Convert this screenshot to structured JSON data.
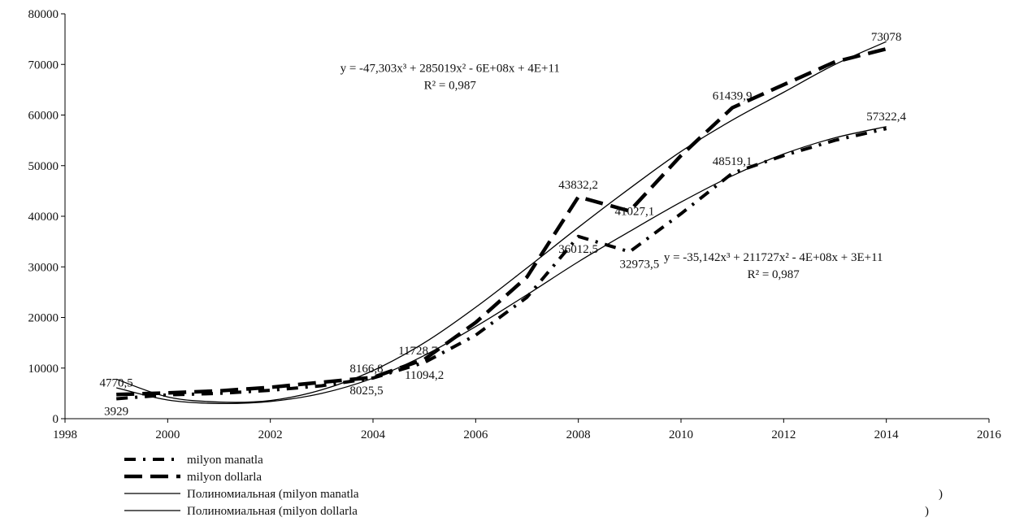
{
  "chart_data": {
    "type": "line",
    "x": [
      1999,
      2000,
      2001,
      2002,
      2003,
      2004,
      2005,
      2006,
      2007,
      2008,
      2009,
      2010,
      2011,
      2012,
      2013,
      2014
    ],
    "series": [
      {
        "name": "milyon manatla",
        "style": "dash-dot",
        "values": [
          3929,
          4700,
          5000,
          5600,
          6500,
          8025.5,
          11094.2,
          16500,
          24000,
          36012.5,
          32973.5,
          40500,
          48519.1,
          52000,
          55000,
          57322.4
        ]
      },
      {
        "name": "milyon dollarla",
        "style": "dash",
        "values": [
          4770.5,
          5100,
          5500,
          6200,
          7200,
          8166.8,
          11728.7,
          19000,
          28000,
          43832.2,
          41027.1,
          52000,
          61439.9,
          66000,
          70500,
          73078
        ]
      },
      {
        "name": "Полиномиальная (milyon manatla",
        "style": "solid",
        "trend_of": "milyon manatla",
        "equation": "y = -35,142x³ + 211727x² - 4E+08x + 3E+11",
        "r2": "R² = 0,987",
        "values": [
          6100,
          3700,
          3000,
          3400,
          5000,
          8000,
          12500,
          18200,
          24500,
          31000,
          37000,
          42800,
          48000,
          52300,
          55500,
          57700
        ]
      },
      {
        "name": "Полиномиальная (milyon dollarla",
        "style": "solid",
        "trend_of": "milyon dollarla",
        "equation": "y = -47,303x³ + 285019x² - 6E+08x + 4E+11",
        "r2": "R² = 0,987",
        "values": [
          7800,
          4300,
          3300,
          3600,
          5700,
          9500,
          15000,
          22000,
          29800,
          37800,
          45500,
          52800,
          59000,
          64500,
          70000,
          74500
        ]
      }
    ],
    "data_labels": [
      {
        "x": 1999,
        "y": 4770.5,
        "text": "4770,5",
        "pos": "above"
      },
      {
        "x": 1999,
        "y": 3929,
        "text": "3929",
        "pos": "below"
      },
      {
        "x": 2004,
        "y": 8166.8,
        "text": "8166,8",
        "pos": "above-left"
      },
      {
        "x": 2004,
        "y": 8025.5,
        "text": "8025,5",
        "pos": "below-left"
      },
      {
        "x": 2005,
        "y": 11728.7,
        "text": "11728,7",
        "pos": "above-left"
      },
      {
        "x": 2005,
        "y": 11094.2,
        "text": "11094,2",
        "pos": "below"
      },
      {
        "x": 2008,
        "y": 43832.2,
        "text": "43832,2",
        "pos": "above"
      },
      {
        "x": 2008,
        "y": 36012.5,
        "text": "36012,5",
        "pos": "below"
      },
      {
        "x": 2009,
        "y": 41027.1,
        "text": "41027,1",
        "pos": "right"
      },
      {
        "x": 2009,
        "y": 32973.5,
        "text": "32973,5",
        "pos": "below-right"
      },
      {
        "x": 2011,
        "y": 61439.9,
        "text": "61439,9",
        "pos": "above"
      },
      {
        "x": 2011,
        "y": 48519.1,
        "text": "48519,1",
        "pos": "above"
      },
      {
        "x": 2014,
        "y": 73078,
        "text": "73078",
        "pos": "above"
      },
      {
        "x": 2014,
        "y": 57322.4,
        "text": "57322,4",
        "pos": "above"
      }
    ],
    "equation_labels": [
      {
        "line1": "y = -47,303x³ + 285019x² - 6E+08x + 4E+11",
        "line2": "R² = 0,987",
        "x": 2005.5,
        "y": 68500
      },
      {
        "line1": "y = -35,142x³ + 211727x² - 4E+08x + 3E+11",
        "line2": "R² = 0,987",
        "x": 2011.8,
        "y": 31200
      }
    ],
    "xlim": [
      1998,
      2016
    ],
    "ylim": [
      0,
      80000
    ],
    "xticks": [
      "1998",
      "2000",
      "2002",
      "2004",
      "2006",
      "2008",
      "2010",
      "2012",
      "2014",
      "2016"
    ],
    "yticks": [
      "0",
      "10000",
      "20000",
      "30000",
      "40000",
      "50000",
      "60000",
      "70000",
      "80000"
    ],
    "xtick_values": [
      1998,
      2000,
      2002,
      2004,
      2006,
      2008,
      2010,
      2012,
      2014,
      2016
    ],
    "ytick_values": [
      0,
      10000,
      20000,
      30000,
      40000,
      50000,
      60000,
      70000,
      80000
    ],
    "legend_position": "bottom-left",
    "legend": [
      {
        "text": "milyon manatla",
        "style": "dash-dot",
        "suffix": ""
      },
      {
        "text": "milyon dollarla",
        "style": "dash",
        "suffix": ""
      },
      {
        "text": "Полиномиальная  (milyon manatla",
        "style": "solid",
        "suffix": ")"
      },
      {
        "text": "Полиномиальная  (milyon dollarla",
        "style": "solid",
        "suffix": ")"
      }
    ],
    "grid": false,
    "colors": {
      "line": "#000000",
      "text": "#111111"
    }
  }
}
